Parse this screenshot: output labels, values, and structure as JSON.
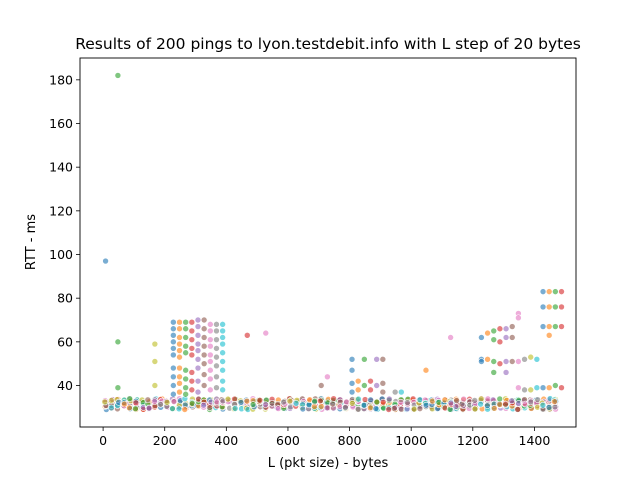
{
  "chart_data": {
    "type": "scatter",
    "title": "Results of 200 pings to lyon.testdebit.info with L step of 20 bytes",
    "xlabel": "L (pkt size) - bytes",
    "ylabel": "RTT - ms",
    "xlim": [
      -75,
      1535
    ],
    "ylim": [
      21,
      190
    ],
    "xticks": [
      0,
      200,
      400,
      600,
      800,
      1000,
      1200,
      1400
    ],
    "yticks": [
      40,
      60,
      80,
      100,
      120,
      140,
      160,
      180
    ],
    "grid": false,
    "marker_alpha": 0.6,
    "palette": [
      "#1f77b4",
      "#ff7f0e",
      "#2ca02c",
      "#d62728",
      "#9467bd",
      "#8c564b",
      "#e377c2",
      "#7f7f7f",
      "#bcbd22",
      "#17becf"
    ],
    "baseline": {
      "x_start": 8,
      "x_step": 20,
      "x_end": 1468,
      "rtt_min": 29,
      "rtt_max": 34
    },
    "points": [
      {
        "x": 8,
        "y": 97,
        "c": 0
      },
      {
        "x": 48,
        "y": 182,
        "c": 2
      },
      {
        "x": 48,
        "y": 60,
        "c": 2
      },
      {
        "x": 48,
        "y": 39,
        "c": 2
      },
      {
        "x": 168,
        "y": 59,
        "c": 8
      },
      {
        "x": 168,
        "y": 51,
        "c": 8
      },
      {
        "x": 168,
        "y": 40,
        "c": 8
      },
      {
        "x": 228,
        "y": 69,
        "c": 0
      },
      {
        "x": 228,
        "y": 66,
        "c": 0
      },
      {
        "x": 228,
        "y": 63,
        "c": 0
      },
      {
        "x": 228,
        "y": 60,
        "c": 0
      },
      {
        "x": 228,
        "y": 57,
        "c": 0
      },
      {
        "x": 228,
        "y": 54,
        "c": 0
      },
      {
        "x": 228,
        "y": 48,
        "c": 0
      },
      {
        "x": 228,
        "y": 44,
        "c": 0
      },
      {
        "x": 228,
        "y": 40,
        "c": 0
      },
      {
        "x": 228,
        "y": 36,
        "c": 0
      },
      {
        "x": 248,
        "y": 69,
        "c": 1
      },
      {
        "x": 248,
        "y": 66,
        "c": 1
      },
      {
        "x": 248,
        "y": 62,
        "c": 1
      },
      {
        "x": 248,
        "y": 59,
        "c": 1
      },
      {
        "x": 248,
        "y": 56,
        "c": 1
      },
      {
        "x": 248,
        "y": 53,
        "c": 1
      },
      {
        "x": 248,
        "y": 48,
        "c": 1
      },
      {
        "x": 248,
        "y": 44,
        "c": 1
      },
      {
        "x": 248,
        "y": 41,
        "c": 1
      },
      {
        "x": 248,
        "y": 37,
        "c": 1
      },
      {
        "x": 268,
        "y": 69,
        "c": 2
      },
      {
        "x": 268,
        "y": 66,
        "c": 2
      },
      {
        "x": 268,
        "y": 62,
        "c": 2
      },
      {
        "x": 268,
        "y": 58,
        "c": 2
      },
      {
        "x": 268,
        "y": 55,
        "c": 2
      },
      {
        "x": 268,
        "y": 47,
        "c": 2
      },
      {
        "x": 268,
        "y": 43,
        "c": 2
      },
      {
        "x": 268,
        "y": 39,
        "c": 2
      },
      {
        "x": 268,
        "y": 36,
        "c": 2
      },
      {
        "x": 288,
        "y": 69,
        "c": 3
      },
      {
        "x": 288,
        "y": 65,
        "c": 3
      },
      {
        "x": 288,
        "y": 61,
        "c": 3
      },
      {
        "x": 288,
        "y": 57,
        "c": 3
      },
      {
        "x": 288,
        "y": 54,
        "c": 3
      },
      {
        "x": 288,
        "y": 46,
        "c": 3
      },
      {
        "x": 288,
        "y": 42,
        "c": 3
      },
      {
        "x": 288,
        "y": 38,
        "c": 3
      },
      {
        "x": 308,
        "y": 70,
        "c": 4
      },
      {
        "x": 308,
        "y": 67,
        "c": 4
      },
      {
        "x": 308,
        "y": 63,
        "c": 4
      },
      {
        "x": 308,
        "y": 59,
        "c": 4
      },
      {
        "x": 308,
        "y": 56,
        "c": 4
      },
      {
        "x": 308,
        "y": 52,
        "c": 4
      },
      {
        "x": 308,
        "y": 48,
        "c": 4
      },
      {
        "x": 308,
        "y": 42,
        "c": 4
      },
      {
        "x": 308,
        "y": 37,
        "c": 4
      },
      {
        "x": 328,
        "y": 70,
        "c": 5
      },
      {
        "x": 328,
        "y": 66,
        "c": 5
      },
      {
        "x": 328,
        "y": 62,
        "c": 5
      },
      {
        "x": 328,
        "y": 58,
        "c": 5
      },
      {
        "x": 328,
        "y": 54,
        "c": 5
      },
      {
        "x": 328,
        "y": 50,
        "c": 5
      },
      {
        "x": 328,
        "y": 45,
        "c": 5
      },
      {
        "x": 328,
        "y": 40,
        "c": 5
      },
      {
        "x": 348,
        "y": 68,
        "c": 6
      },
      {
        "x": 348,
        "y": 65,
        "c": 6
      },
      {
        "x": 348,
        "y": 61,
        "c": 6
      },
      {
        "x": 348,
        "y": 58,
        "c": 6
      },
      {
        "x": 348,
        "y": 54,
        "c": 6
      },
      {
        "x": 348,
        "y": 51,
        "c": 6
      },
      {
        "x": 348,
        "y": 47,
        "c": 6
      },
      {
        "x": 348,
        "y": 43,
        "c": 6
      },
      {
        "x": 348,
        "y": 38,
        "c": 6
      },
      {
        "x": 368,
        "y": 68,
        "c": 7
      },
      {
        "x": 368,
        "y": 65,
        "c": 7
      },
      {
        "x": 368,
        "y": 61,
        "c": 7
      },
      {
        "x": 368,
        "y": 57,
        "c": 7
      },
      {
        "x": 368,
        "y": 53,
        "c": 7
      },
      {
        "x": 368,
        "y": 49,
        "c": 7
      },
      {
        "x": 368,
        "y": 44,
        "c": 7
      },
      {
        "x": 368,
        "y": 39,
        "c": 7
      },
      {
        "x": 388,
        "y": 68,
        "c": 9
      },
      {
        "x": 388,
        "y": 65,
        "c": 9
      },
      {
        "x": 388,
        "y": 62,
        "c": 9
      },
      {
        "x": 388,
        "y": 59,
        "c": 9
      },
      {
        "x": 388,
        "y": 55,
        "c": 9
      },
      {
        "x": 388,
        "y": 51,
        "c": 9
      },
      {
        "x": 388,
        "y": 47,
        "c": 9
      },
      {
        "x": 388,
        "y": 42,
        "c": 9
      },
      {
        "x": 388,
        "y": 38,
        "c": 9
      },
      {
        "x": 468,
        "y": 63,
        "c": 3
      },
      {
        "x": 528,
        "y": 64,
        "c": 6
      },
      {
        "x": 708,
        "y": 40,
        "c": 5
      },
      {
        "x": 728,
        "y": 44,
        "c": 6
      },
      {
        "x": 808,
        "y": 52,
        "c": 0
      },
      {
        "x": 808,
        "y": 47,
        "c": 0
      },
      {
        "x": 808,
        "y": 41,
        "c": 0
      },
      {
        "x": 808,
        "y": 37,
        "c": 0
      },
      {
        "x": 828,
        "y": 42,
        "c": 1
      },
      {
        "x": 828,
        "y": 38,
        "c": 1
      },
      {
        "x": 848,
        "y": 52,
        "c": 2
      },
      {
        "x": 848,
        "y": 40,
        "c": 2
      },
      {
        "x": 868,
        "y": 42,
        "c": 3
      },
      {
        "x": 868,
        "y": 38,
        "c": 3
      },
      {
        "x": 888,
        "y": 52,
        "c": 4
      },
      {
        "x": 888,
        "y": 40,
        "c": 4
      },
      {
        "x": 908,
        "y": 52,
        "c": 5
      },
      {
        "x": 908,
        "y": 41,
        "c": 5
      },
      {
        "x": 908,
        "y": 37,
        "c": 5
      },
      {
        "x": 948,
        "y": 37,
        "c": 7
      },
      {
        "x": 968,
        "y": 37,
        "c": 9
      },
      {
        "x": 1048,
        "y": 47,
        "c": 1
      },
      {
        "x": 1128,
        "y": 62,
        "c": 6
      },
      {
        "x": 1228,
        "y": 62,
        "c": 0
      },
      {
        "x": 1228,
        "y": 52,
        "c": 0
      },
      {
        "x": 1228,
        "y": 51,
        "c": 0
      },
      {
        "x": 1248,
        "y": 64,
        "c": 1
      },
      {
        "x": 1248,
        "y": 52,
        "c": 1
      },
      {
        "x": 1268,
        "y": 65,
        "c": 2
      },
      {
        "x": 1268,
        "y": 61,
        "c": 2
      },
      {
        "x": 1268,
        "y": 51,
        "c": 2
      },
      {
        "x": 1268,
        "y": 46,
        "c": 2
      },
      {
        "x": 1288,
        "y": 66,
        "c": 3
      },
      {
        "x": 1288,
        "y": 60,
        "c": 3
      },
      {
        "x": 1288,
        "y": 50,
        "c": 3
      },
      {
        "x": 1308,
        "y": 66,
        "c": 4
      },
      {
        "x": 1308,
        "y": 62,
        "c": 4
      },
      {
        "x": 1308,
        "y": 51,
        "c": 4
      },
      {
        "x": 1308,
        "y": 46,
        "c": 4
      },
      {
        "x": 1328,
        "y": 67,
        "c": 5
      },
      {
        "x": 1328,
        "y": 62,
        "c": 5
      },
      {
        "x": 1328,
        "y": 51,
        "c": 5
      },
      {
        "x": 1348,
        "y": 73,
        "c": 6
      },
      {
        "x": 1348,
        "y": 71,
        "c": 6
      },
      {
        "x": 1348,
        "y": 51,
        "c": 6
      },
      {
        "x": 1348,
        "y": 39,
        "c": 6
      },
      {
        "x": 1368,
        "y": 52,
        "c": 7
      },
      {
        "x": 1368,
        "y": 38,
        "c": 7
      },
      {
        "x": 1388,
        "y": 53,
        "c": 8
      },
      {
        "x": 1388,
        "y": 38,
        "c": 8
      },
      {
        "x": 1408,
        "y": 52,
        "c": 9
      },
      {
        "x": 1408,
        "y": 39,
        "c": 9
      },
      {
        "x": 1428,
        "y": 83,
        "c": 0
      },
      {
        "x": 1428,
        "y": 76,
        "c": 0
      },
      {
        "x": 1428,
        "y": 67,
        "c": 0
      },
      {
        "x": 1428,
        "y": 39,
        "c": 0
      },
      {
        "x": 1448,
        "y": 83,
        "c": 1
      },
      {
        "x": 1448,
        "y": 76,
        "c": 1
      },
      {
        "x": 1448,
        "y": 67,
        "c": 1
      },
      {
        "x": 1448,
        "y": 63,
        "c": 1
      },
      {
        "x": 1448,
        "y": 39,
        "c": 1
      },
      {
        "x": 1468,
        "y": 83,
        "c": 2
      },
      {
        "x": 1468,
        "y": 76,
        "c": 2
      },
      {
        "x": 1468,
        "y": 67,
        "c": 2
      },
      {
        "x": 1468,
        "y": 40,
        "c": 2
      },
      {
        "x": 1488,
        "y": 83,
        "c": 3
      },
      {
        "x": 1488,
        "y": 76,
        "c": 3
      },
      {
        "x": 1488,
        "y": 67,
        "c": 3
      },
      {
        "x": 1488,
        "y": 39,
        "c": 3
      }
    ]
  }
}
